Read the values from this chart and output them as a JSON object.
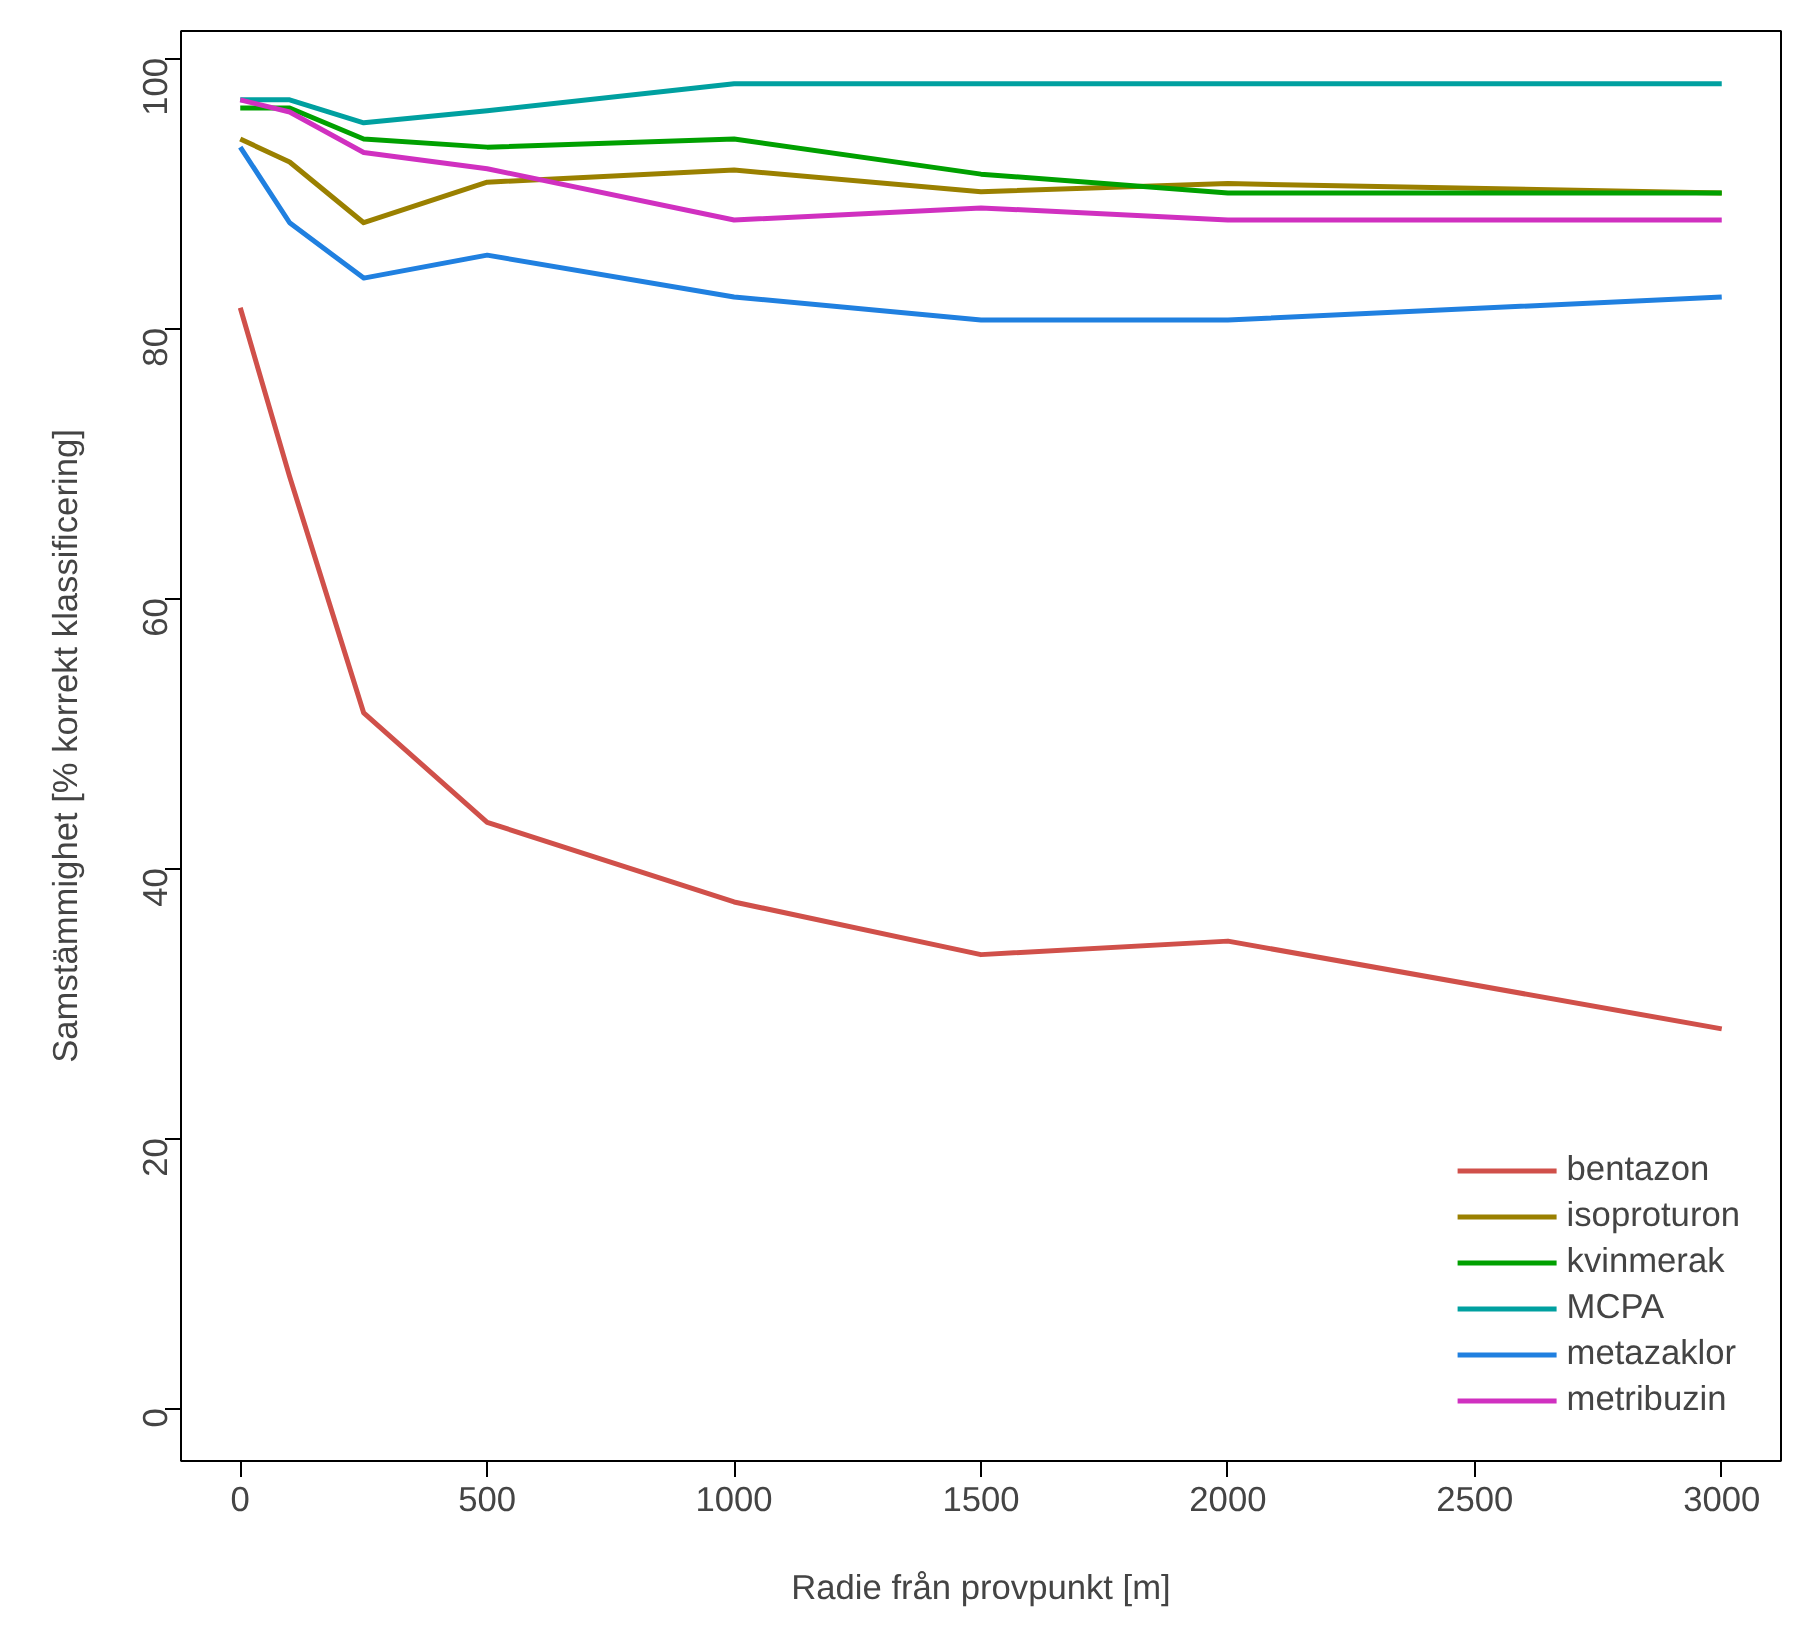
{
  "chart_data": {
    "type": "line",
    "xlabel": "Radie från provpunkt [m]",
    "ylabel": "Samstämmighet [% korrekt klassificering]",
    "x": [
      0,
      100,
      250,
      500,
      1000,
      1500,
      2000,
      3000
    ],
    "xlim": [
      -120,
      3120
    ],
    "ylim": [
      -3.9,
      102
    ],
    "xticks": [
      0,
      500,
      1000,
      1500,
      2000,
      2500,
      3000
    ],
    "yticks": [
      0,
      20,
      40,
      60,
      80,
      100
    ],
    "grid": false,
    "legend": "bottom right",
    "marker": "none",
    "line_style": "solid",
    "series": [
      {
        "name": "bentazon",
        "color": "#d0504a",
        "values": [
          81.5,
          69,
          51.5,
          43.4,
          37.5,
          33.6,
          34.6,
          28.1
        ]
      },
      {
        "name": "isoproturon",
        "color": "#9a8000",
        "values": [
          94.0,
          92.3,
          87.8,
          90.8,
          91.7,
          90.1,
          90.7,
          90.0
        ]
      },
      {
        "name": "kvinmerak",
        "color": "#00a000",
        "values": [
          96.3,
          96.3,
          94.0,
          93.4,
          94.0,
          91.4,
          90.0,
          90.0
        ]
      },
      {
        "name": "MCPA",
        "color": "#00a0a0",
        "values": [
          96.9,
          96.9,
          95.2,
          96.1,
          98.1,
          98.1,
          98.1,
          98.1
        ]
      },
      {
        "name": "metazaklor",
        "color": "#2080e0",
        "values": [
          93.4,
          87.8,
          83.7,
          85.4,
          82.3,
          80.6,
          80.6,
          82.3
        ]
      },
      {
        "name": "metribuzin",
        "color": "#d030c0",
        "values": [
          96.9,
          96.0,
          93.0,
          91.8,
          88.0,
          88.9,
          88.0,
          88.0
        ]
      }
    ]
  }
}
